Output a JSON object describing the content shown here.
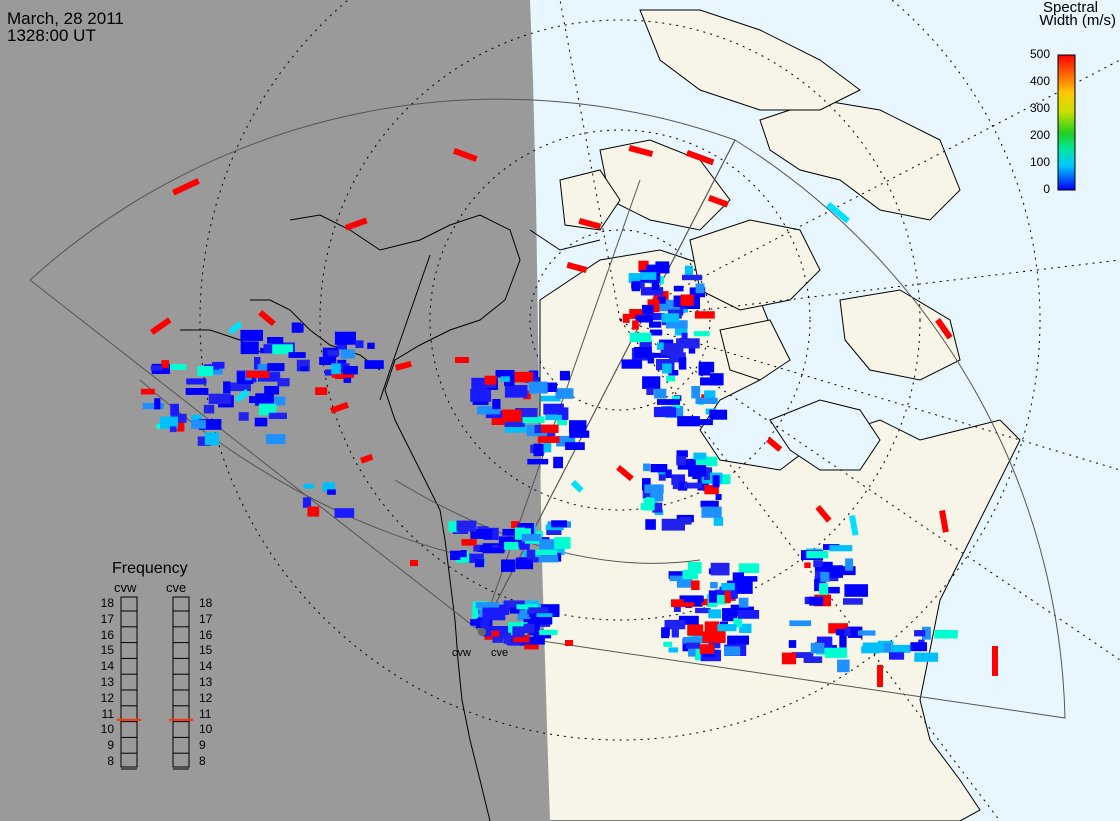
{
  "title": {
    "date": "March, 28 2011",
    "time": "1328:00 UT"
  },
  "colorbar": {
    "title_line1": "Spectral",
    "title_line2": "Width (m/s)",
    "ticks": [
      "500",
      "400",
      "300",
      "200",
      "100",
      "0"
    ],
    "min": 0,
    "max": 500,
    "colors": [
      "#0000ff",
      "#00c8ff",
      "#00e6a0",
      "#20d020",
      "#c8e000",
      "#ffc800",
      "#ff6400",
      "#ff0000"
    ]
  },
  "frequency_panel": {
    "title": "Frequency",
    "radars": [
      {
        "name": "cvw",
        "value_mhz": 10.6
      },
      {
        "name": "cve",
        "value_mhz": 10.6
      }
    ],
    "scale": [
      "18",
      "17",
      "16",
      "15",
      "14",
      "13",
      "12",
      "11",
      "10",
      "9",
      "8"
    ],
    "marker_color": "#ff3300"
  },
  "radar_labels": [
    "cvw",
    "cve"
  ],
  "colors": {
    "night_shade": "#9a9a9a",
    "ocean_day": "#e8f6ff",
    "land_day": "#f7f5e8",
    "coastline": "#000000",
    "fov_line": "#555555",
    "grid_dotted": "#000000"
  }
}
